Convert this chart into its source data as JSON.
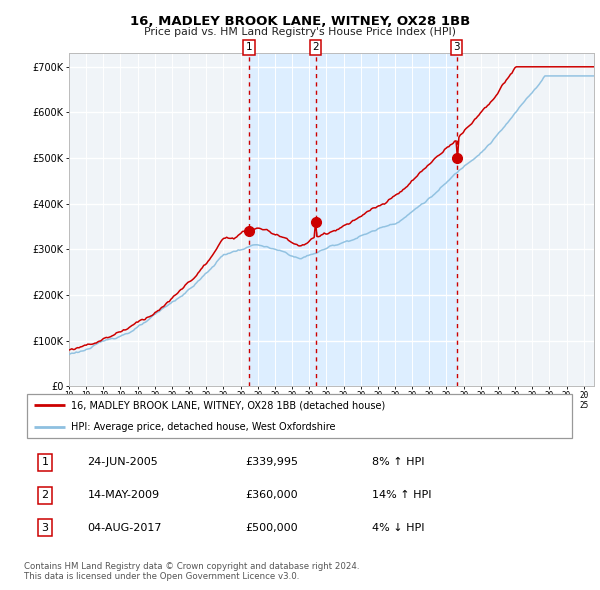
{
  "title": "16, MADLEY BROOK LANE, WITNEY, OX28 1BB",
  "subtitle": "Price paid vs. HM Land Registry's House Price Index (HPI)",
  "legend_red": "16, MADLEY BROOK LANE, WITNEY, OX28 1BB (detached house)",
  "legend_blue": "HPI: Average price, detached house, West Oxfordshire",
  "transactions": [
    {
      "num": 1,
      "date": "24-JUN-2005",
      "price": 339995,
      "pct": "8%",
      "dir": "↑"
    },
    {
      "num": 2,
      "date": "14-MAY-2009",
      "price": 360000,
      "pct": "14%",
      "dir": "↑"
    },
    {
      "num": 3,
      "date": "04-AUG-2017",
      "price": 500000,
      "pct": "4%",
      "dir": "↓"
    }
  ],
  "transaction_dates": [
    2005.48,
    2009.37,
    2017.59
  ],
  "transaction_prices": [
    339995,
    360000,
    500000
  ],
  "ylim": [
    0,
    730000
  ],
  "yticks": [
    0,
    100000,
    200000,
    300000,
    400000,
    500000,
    600000,
    700000
  ],
  "ytick_labels": [
    "£0",
    "£100K",
    "£200K",
    "£300K",
    "£400K",
    "£500K",
    "£600K",
    "£700K"
  ],
  "start_year": 1995,
  "end_year": 2025,
  "red_color": "#cc0000",
  "blue_color": "#8ec0e0",
  "bg_color": "#ddeeff",
  "chart_bg": "#f0f4f8",
  "grid_color": "#ffffff",
  "footer": "Contains HM Land Registry data © Crown copyright and database right 2024.\nThis data is licensed under the Open Government Licence v3.0."
}
